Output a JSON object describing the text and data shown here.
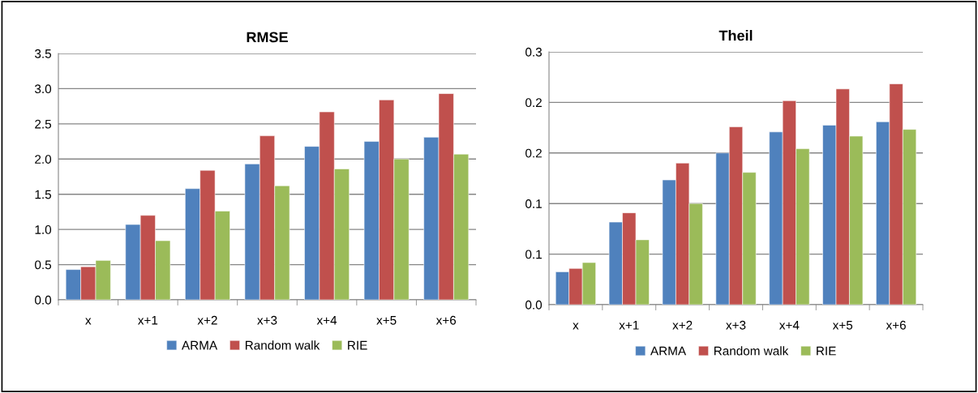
{
  "chart_data": [
    {
      "type": "bar",
      "title": "RMSE",
      "categories": [
        "x",
        "x+1",
        "x+2",
        "x+3",
        "x+4",
        "x+5",
        "x+6"
      ],
      "series": [
        {
          "name": "ARMA",
          "color": "#4f81bd",
          "values": [
            0.43,
            1.07,
            1.58,
            1.93,
            2.18,
            2.25,
            2.31
          ]
        },
        {
          "name": "Random walk",
          "color": "#c0504d",
          "values": [
            0.47,
            1.2,
            1.84,
            2.33,
            2.67,
            2.84,
            2.93
          ]
        },
        {
          "name": "RIE",
          "color": "#9bbb59",
          "values": [
            0.56,
            0.84,
            1.26,
            1.62,
            1.86,
            2.0,
            2.07
          ]
        }
      ],
      "ylim": [
        0,
        3.5
      ],
      "yticks": [
        {
          "value": 0,
          "label": "0.0"
        },
        0.5,
        {
          "value": 1,
          "label": "1.0"
        },
        1.5,
        {
          "value": 2,
          "label": "2.0"
        },
        2.5,
        {
          "value": 3,
          "label": "3.0"
        },
        3.5
      ],
      "grid": "y",
      "legend": "bottom"
    },
    {
      "type": "bar",
      "title": "Theil",
      "categories": [
        "x",
        "x+1",
        "x+2",
        "x+3",
        "x+4",
        "x+5",
        "x+6"
      ],
      "series": [
        {
          "name": "ARMA",
          "color": "#4f81bd",
          "values": [
            0.039,
            0.098,
            0.148,
            0.18,
            0.205,
            0.213,
            0.217
          ]
        },
        {
          "name": "Random walk",
          "color": "#c0504d",
          "values": [
            0.043,
            0.109,
            0.168,
            0.211,
            0.242,
            0.256,
            0.262
          ]
        },
        {
          "name": "RIE",
          "color": "#9bbb59",
          "values": [
            0.05,
            0.077,
            0.12,
            0.157,
            0.185,
            0.2,
            0.208
          ]
        }
      ],
      "ylim": [
        0,
        0.3
      ],
      "yticks": [
        {
          "value": 0,
          "label": "0.0"
        },
        {
          "value": 0.06,
          "label": "0.1"
        },
        {
          "value": 0.12,
          "label": "0.1"
        },
        {
          "value": 0.18,
          "label": "0.2"
        },
        {
          "value": 0.24,
          "label": "0.2"
        },
        0.3
      ],
      "grid": "y",
      "legend": "bottom"
    }
  ]
}
